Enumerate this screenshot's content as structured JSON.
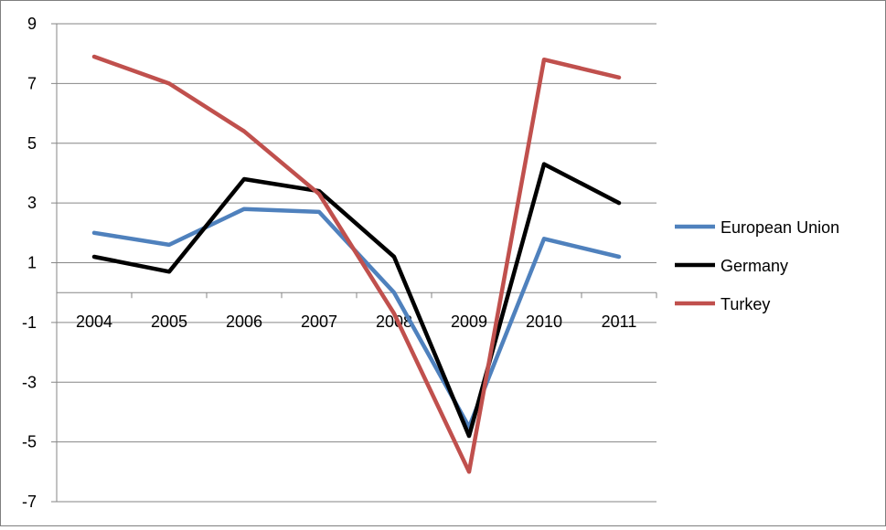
{
  "chart_data": {
    "type": "line",
    "title": "",
    "xlabel": "",
    "ylabel": "",
    "categories": [
      "2004",
      "2005",
      "2006",
      "2007",
      "2008",
      "2009",
      "2010",
      "2011"
    ],
    "ylim": [
      -7,
      9
    ],
    "yticks": [
      -7,
      -5,
      -3,
      -1,
      1,
      3,
      5,
      7,
      9
    ],
    "grid": true,
    "legend_position": "right",
    "series": [
      {
        "name": "European Union",
        "color": "#4f81bd",
        "values": [
          2.0,
          1.6,
          2.8,
          2.7,
          0.0,
          -4.5,
          1.8,
          1.2
        ]
      },
      {
        "name": "Germany",
        "color": "#000000",
        "values": [
          1.2,
          0.7,
          3.8,
          3.4,
          1.2,
          -4.8,
          4.3,
          3.0
        ]
      },
      {
        "name": "Turkey",
        "color": "#c0504d",
        "values": [
          7.9,
          7.0,
          5.4,
          3.3,
          -0.7,
          -6.0,
          7.8,
          7.2
        ]
      }
    ]
  }
}
